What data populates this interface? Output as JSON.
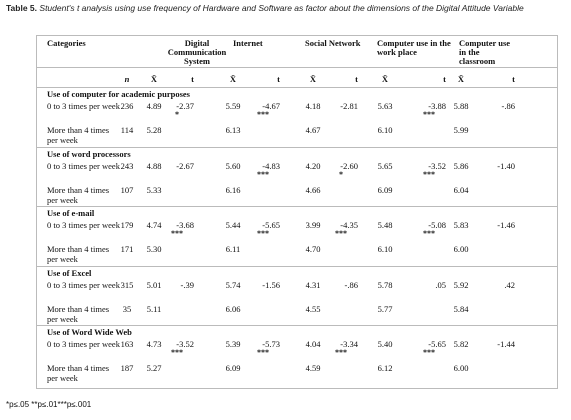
{
  "header": {
    "label": "Table 5.",
    "title": "Student's t analysis using use frequency of Hardware and Software as factor about the dimensions of the Digital Attitude Variable"
  },
  "table": {
    "columns": [
      "Categories",
      "Digital Communication System",
      "Internet",
      "Social Network",
      "Computer use in the work place",
      "Computer use in the classroom"
    ],
    "subheaders": {
      "n": "n",
      "mean": "X̄",
      "t": "t"
    },
    "groups": [
      {
        "title": "Use of computer for academic purposes",
        "rows": [
          {
            "label": "0 to 3 times per week",
            "n": "236",
            "values": [
              {
                "mean": "4.89",
                "t": "-2.37",
                "sig": "*"
              },
              {
                "mean": "5.59",
                "t": "-4.67",
                "sig": "***"
              },
              {
                "mean": "4.18",
                "t": "-2.81"
              },
              {
                "mean": "5.63",
                "t": "-3.88",
                "sig": "***"
              },
              {
                "mean": "5.88",
                "t": "-.86"
              }
            ]
          },
          {
            "label": "More than 4 times per week",
            "n": "114",
            "values": [
              {
                "mean": "5.28"
              },
              {
                "mean": "6.13"
              },
              {
                "mean": "4.67"
              },
              {
                "mean": "6.10"
              },
              {
                "mean": "5.99"
              }
            ]
          }
        ]
      },
      {
        "title": "Use of word processors",
        "rows": [
          {
            "label": "0 to 3 times per week",
            "n": "243",
            "values": [
              {
                "mean": "4.88",
                "t": "-2.67"
              },
              {
                "mean": "5.60",
                "t": "-4.83",
                "sig": "***"
              },
              {
                "mean": "4.20",
                "t": "-2.60",
                "sig": "*"
              },
              {
                "mean": "5.65",
                "t": "-3.52",
                "sig": "***"
              },
              {
                "mean": "5.86",
                "t": "-1.40"
              }
            ]
          },
          {
            "label": "More than 4 times per week",
            "n": "107",
            "values": [
              {
                "mean": "5.33"
              },
              {
                "mean": "6.16"
              },
              {
                "mean": "4.66"
              },
              {
                "mean": "6.09"
              },
              {
                "mean": "6.04"
              }
            ]
          }
        ]
      },
      {
        "title": "Use of e-mail",
        "rows": [
          {
            "label": "0 to 3 times per week",
            "n": "179",
            "values": [
              {
                "mean": "4.74",
                "t": "-3.68",
                "sig": "***"
              },
              {
                "mean": "5.44",
                "t": "-5.65",
                "sig": "***"
              },
              {
                "mean": "3.99",
                "t": "-4.35",
                "sig": "***"
              },
              {
                "mean": "5.48",
                "t": "-5.08",
                "sig": "***"
              },
              {
                "mean": "5.83",
                "t": "-1.46"
              }
            ]
          },
          {
            "label": "More than 4 times per week",
            "n": "171",
            "values": [
              {
                "mean": "5.30"
              },
              {
                "mean": "6.11"
              },
              {
                "mean": "4.70"
              },
              {
                "mean": "6.10"
              },
              {
                "mean": "6.00"
              }
            ]
          }
        ]
      },
      {
        "title": "Use of Excel",
        "rows": [
          {
            "label": "0 to 3 times per week",
            "n": "315",
            "values": [
              {
                "mean": "5.01",
                "t": "-.39"
              },
              {
                "mean": "5.74",
                "t": "-1.56"
              },
              {
                "mean": "4.31",
                "t": "-.86"
              },
              {
                "mean": "5.78",
                "t": ".05"
              },
              {
                "mean": "5.92",
                "t": ".42"
              }
            ]
          },
          {
            "label": "More than 4 times per week",
            "n": "35",
            "values": [
              {
                "mean": "5.11"
              },
              {
                "mean": "6.06"
              },
              {
                "mean": "4.55"
              },
              {
                "mean": "5.77"
              },
              {
                "mean": "5.84"
              }
            ]
          }
        ]
      },
      {
        "title": "Use of Word Wide Web",
        "rows": [
          {
            "label": "0 to 3 times per week",
            "n": "163",
            "values": [
              {
                "mean": "4.73",
                "t": "-3.52",
                "sig": "***"
              },
              {
                "mean": "5.39",
                "t": "-5.73",
                "sig": "***"
              },
              {
                "mean": "4.04",
                "t": "-3.34",
                "sig": "***"
              },
              {
                "mean": "5.40",
                "t": "-5.65",
                "sig": "***"
              },
              {
                "mean": "5.82",
                "t": "-1.44"
              }
            ]
          },
          {
            "label": "More than 4 times per week",
            "n": "187",
            "values": [
              {
                "mean": "5.27"
              },
              {
                "mean": "6.09"
              },
              {
                "mean": "4.59"
              },
              {
                "mean": "6.12"
              },
              {
                "mean": "6.00"
              }
            ]
          }
        ]
      }
    ]
  },
  "footnote": "*p≤.05 **p≤.01***p≤.001"
}
